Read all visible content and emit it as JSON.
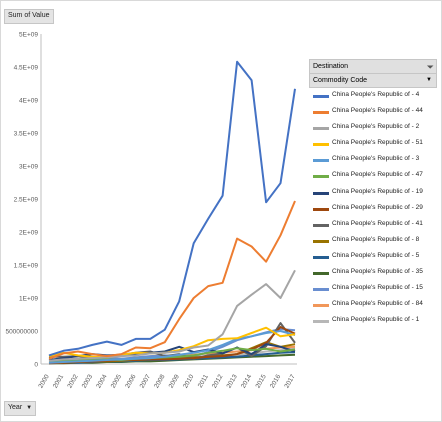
{
  "value_field": "Sum of Value",
  "year_field": "Year",
  "legend": {
    "header": "Destination",
    "subheader": "Commodity Code"
  },
  "icons": {
    "filter": "funnel-filter-icon",
    "dropdown": "dropdown-arrow-icon"
  },
  "chart_data": {
    "type": "line",
    "x": [
      "2000",
      "2001",
      "2002",
      "2003",
      "2004",
      "2005",
      "2006",
      "2007",
      "2008",
      "2009",
      "2010",
      "2011",
      "2012",
      "2013",
      "2014",
      "2015",
      "2016",
      "2017"
    ],
    "ylim": [
      0,
      5000000000
    ],
    "yticks": [
      "0",
      "500000000",
      "1E+09",
      "1.5E+09",
      "2E+09",
      "2.5E+09",
      "3E+09",
      "3.5E+09",
      "4E+09",
      "4.5E+09",
      "5E+09"
    ],
    "grid": false,
    "legend_position": "right",
    "series": [
      {
        "name": "China  People's Republic of - 4",
        "color": "#4472c4",
        "values": [
          130,
          200,
          230,
          290,
          340,
          290,
          380,
          380,
          520,
          950,
          1830,
          2200,
          2550,
          4580,
          4300,
          2450,
          2740,
          4170
        ]
      },
      {
        "name": "China  People's Republic of - 44",
        "color": "#ed7d31",
        "values": [
          80,
          160,
          190,
          150,
          120,
          150,
          250,
          240,
          330,
          680,
          1000,
          1180,
          1230,
          1900,
          1780,
          1550,
          1950,
          2470
        ]
      },
      {
        "name": "China  People's Republic of - 2",
        "color": "#a5a5a5",
        "values": [
          50,
          70,
          80,
          90,
          100,
          120,
          130,
          160,
          170,
          190,
          250,
          280,
          450,
          880,
          1050,
          1210,
          1000,
          1420
        ]
      },
      {
        "name": "China  People's Republic of - 51",
        "color": "#ffc000",
        "values": [
          120,
          170,
          130,
          110,
          100,
          140,
          170,
          160,
          170,
          210,
          270,
          360,
          380,
          390,
          470,
          550,
          420,
          450
        ]
      },
      {
        "name": "China  People's Republic of - 3",
        "color": "#5b9bd5",
        "values": [
          20,
          30,
          40,
          50,
          60,
          70,
          80,
          90,
          110,
          140,
          170,
          210,
          290,
          380,
          420,
          470,
          500,
          440
        ]
      },
      {
        "name": "China  People's Republic of - 47",
        "color": "#70ad47",
        "values": [
          30,
          40,
          50,
          60,
          70,
          60,
          80,
          90,
          100,
          110,
          130,
          170,
          200,
          240,
          210,
          230,
          190,
          220
        ]
      },
      {
        "name": "China  People's Republic of - 19",
        "color": "#264478",
        "values": [
          60,
          90,
          120,
          150,
          130,
          140,
          150,
          170,
          190,
          260,
          180,
          220,
          160,
          250,
          150,
          300,
          260,
          190
        ]
      },
      {
        "name": "China  People's Republic of - 29",
        "color": "#9e480e",
        "values": [
          10,
          20,
          30,
          40,
          50,
          60,
          60,
          70,
          70,
          80,
          90,
          110,
          120,
          150,
          220,
          320,
          560,
          460
        ]
      },
      {
        "name": "China  People's Republic of - 41",
        "color": "#636363",
        "values": [
          110,
          110,
          120,
          90,
          110,
          140,
          170,
          190,
          120,
          150,
          80,
          130,
          160,
          250,
          120,
          270,
          620,
          320
        ]
      },
      {
        "name": "China  People's Republic of - 8",
        "color": "#997300",
        "values": [
          20,
          20,
          30,
          40,
          40,
          50,
          60,
          70,
          80,
          90,
          100,
          110,
          130,
          150,
          240,
          330,
          260,
          300
        ]
      },
      {
        "name": "China  People's Republic of - 5",
        "color": "#255e91",
        "values": [
          10,
          20,
          20,
          30,
          40,
          40,
          50,
          60,
          60,
          70,
          80,
          90,
          100,
          110,
          130,
          150,
          170,
          180
        ]
      },
      {
        "name": "China  People's Republic of - 35",
        "color": "#43682b",
        "values": [
          10,
          10,
          20,
          20,
          30,
          30,
          40,
          40,
          50,
          60,
          70,
          80,
          90,
          100,
          110,
          120,
          130,
          140
        ]
      },
      {
        "name": "China  People's Republic of - 15",
        "color": "#698ed0",
        "values": [
          40,
          60,
          50,
          70,
          90,
          80,
          100,
          120,
          130,
          110,
          120,
          180,
          260,
          360,
          420,
          480,
          530,
          510
        ]
      },
      {
        "name": "China  People's Republic of - 84",
        "color": "#f1975a",
        "values": [
          30,
          40,
          50,
          60,
          70,
          80,
          90,
          100,
          110,
          120,
          140,
          160,
          170,
          190,
          210,
          230,
          250,
          260
        ]
      },
      {
        "name": "China  People's Republic of - 1",
        "color": "#b7b7b7",
        "values": [
          10,
          20,
          30,
          40,
          50,
          60,
          70,
          80,
          90,
          100,
          110,
          120,
          130,
          140,
          160,
          190,
          210,
          240
        ]
      }
    ],
    "value_scale_note": "values above in millions"
  }
}
